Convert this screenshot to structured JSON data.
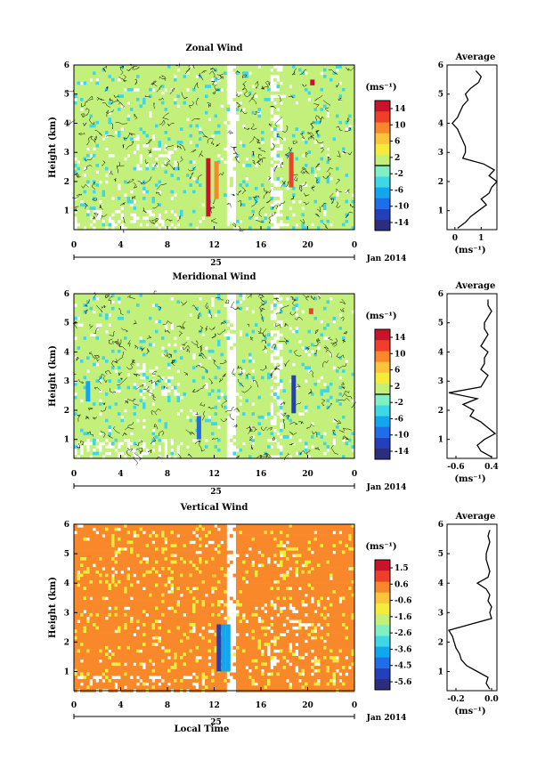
{
  "figure": {
    "month_label": "Jan 2014",
    "bottom_xlabel": "Local Time",
    "day_label": "25",
    "unit_label": "(ms⁻¹)"
  },
  "chart_data": [
    {
      "type": "heatmap",
      "title": "Zonal Wind",
      "ylabel": "Height (km)",
      "xlabel": "Local Time",
      "xticks": [
        "0",
        "4",
        "8",
        "12",
        "16",
        "20",
        "0"
      ],
      "xlim": [
        0,
        24
      ],
      "yticks": [
        "1",
        "2",
        "3",
        "4",
        "5",
        "6"
      ],
      "ylim": [
        0.35,
        6
      ],
      "grid": false,
      "colorbar": {
        "label": "(ms⁻¹)",
        "ticks": [
          "14",
          "10",
          "6",
          "2",
          "-2",
          "-6",
          "-10",
          "-14"
        ],
        "range": [
          -16,
          16
        ]
      },
      "background_value": 0.5,
      "features": [
        {
          "time": 11.5,
          "height_range": [
            0.8,
            2.8
          ],
          "value": 14
        },
        {
          "time": 12.2,
          "height_range": [
            1.4,
            2.7
          ],
          "value": 9
        },
        {
          "time": 18.6,
          "height_range": [
            1.8,
            3.0
          ],
          "value": 13
        },
        {
          "time": 20.4,
          "height_range": [
            5.3,
            5.5
          ],
          "value": 14
        }
      ],
      "profile": {
        "title": "Average",
        "xlabel": "(ms⁻¹)",
        "xticks": [
          "0",
          "1"
        ],
        "xlim": [
          -0.3,
          1.6
        ],
        "heights": [
          0.4,
          0.6,
          0.8,
          1.0,
          1.2,
          1.4,
          1.6,
          1.8,
          2.0,
          2.2,
          2.4,
          2.6,
          2.8,
          3.0,
          3.2,
          3.4,
          3.6,
          3.8,
          4.0,
          4.2,
          4.4,
          4.6,
          4.8,
          5.0,
          5.2,
          5.4,
          5.6,
          5.8
        ],
        "values": [
          0.1,
          0.4,
          0.6,
          0.9,
          1.2,
          1.0,
          1.3,
          1.4,
          1.6,
          1.3,
          1.5,
          1.1,
          0.3,
          0.4,
          0.4,
          0.3,
          0.2,
          0.1,
          -0.1,
          0.1,
          0.2,
          0.3,
          0.5,
          0.4,
          0.6,
          0.9,
          1.0,
          0.8
        ]
      }
    },
    {
      "type": "heatmap",
      "title": "Meridional Wind",
      "ylabel": "Height (km)",
      "xlabel": "Local Time",
      "xticks": [
        "0",
        "4",
        "8",
        "12",
        "16",
        "20",
        "0"
      ],
      "xlim": [
        0,
        24
      ],
      "yticks": [
        "1",
        "2",
        "3",
        "4",
        "5",
        "6"
      ],
      "ylim": [
        0.35,
        6
      ],
      "grid": false,
      "colorbar": {
        "label": "(ms⁻¹)",
        "ticks": [
          "14",
          "10",
          "6",
          "2",
          "-2",
          "-6",
          "-10",
          "-14"
        ],
        "range": [
          -16,
          16
        ]
      },
      "background_value": 0.5,
      "features": [
        {
          "time": 18.8,
          "height_range": [
            1.9,
            3.2
          ],
          "value": -11
        },
        {
          "time": 1.2,
          "height_range": [
            2.3,
            3.0
          ],
          "value": -8
        },
        {
          "time": 10.7,
          "height_range": [
            1.0,
            1.8
          ],
          "value": -10
        },
        {
          "time": 20.3,
          "height_range": [
            5.3,
            5.5
          ],
          "value": 13
        }
      ],
      "profile": {
        "title": "Average",
        "xlabel": "(ms⁻¹)",
        "xticks": [
          "-0.6",
          "0.4"
        ],
        "xlim": [
          -0.85,
          0.55
        ],
        "heights": [
          0.4,
          0.6,
          0.8,
          1.0,
          1.2,
          1.4,
          1.6,
          1.8,
          2.0,
          2.2,
          2.4,
          2.6,
          2.8,
          3.0,
          3.2,
          3.4,
          3.6,
          3.8,
          4.0,
          4.2,
          4.4,
          4.6,
          4.8,
          5.0,
          5.2,
          5.4,
          5.6,
          5.8
        ],
        "values": [
          0.4,
          0.1,
          0.0,
          0.2,
          0.5,
          0.3,
          0.1,
          -0.2,
          -0.1,
          -0.4,
          0.0,
          -0.8,
          0.1,
          0.2,
          0.3,
          0.1,
          0.2,
          0.2,
          0.3,
          0.1,
          0.2,
          0.3,
          0.2,
          0.2,
          0.3,
          0.4,
          0.3,
          0.3
        ]
      }
    },
    {
      "type": "heatmap",
      "title": "Vertical Wind",
      "ylabel": "Height (km)",
      "xlabel": "Local Time",
      "xticks": [
        "0",
        "4",
        "8",
        "12",
        "16",
        "20",
        "0"
      ],
      "xlim": [
        0,
        24
      ],
      "yticks": [
        "1",
        "2",
        "3",
        "4",
        "5",
        "6"
      ],
      "ylim": [
        0.35,
        6
      ],
      "grid": false,
      "colorbar": {
        "label": "(ms⁻¹)",
        "ticks": [
          "1.5",
          "0.6",
          "-0.6",
          "-1.6",
          "-2.6",
          "-3.6",
          "-4.5",
          "-5.6"
        ],
        "range": [
          -6,
          2
        ]
      },
      "background_value": 0.2,
      "features": [
        {
          "time": 12.4,
          "height_range": [
            1.0,
            2.6
          ],
          "value": -5.0
        },
        {
          "time": 12.8,
          "height_range": [
            1.0,
            2.6
          ],
          "value": -4.0
        },
        {
          "time": 13.2,
          "height_range": [
            1.0,
            2.6
          ],
          "value": -3.5
        },
        {
          "time": 12.0,
          "height_range": [
            4.2,
            4.3
          ],
          "value": -0.6
        }
      ],
      "profile": {
        "title": "Average",
        "xlabel": "(ms⁻¹)",
        "xticks": [
          "-0.2",
          "0.0"
        ],
        "xlim": [
          -0.25,
          0.03
        ],
        "heights": [
          0.4,
          0.6,
          0.8,
          1.0,
          1.2,
          1.4,
          1.6,
          1.8,
          2.0,
          2.2,
          2.4,
          2.6,
          2.8,
          3.0,
          3.2,
          3.4,
          3.6,
          3.8,
          4.0,
          4.2,
          4.4,
          4.6,
          4.8,
          5.0,
          5.2,
          5.4,
          5.6,
          5.8
        ],
        "values": [
          -0.01,
          -0.03,
          -0.02,
          -0.08,
          -0.14,
          -0.17,
          -0.18,
          -0.2,
          -0.21,
          -0.22,
          -0.24,
          -0.12,
          0.0,
          -0.01,
          0.0,
          -0.02,
          -0.01,
          -0.03,
          -0.08,
          -0.02,
          -0.01,
          -0.02,
          -0.03,
          -0.03,
          -0.02,
          -0.01,
          -0.02,
          -0.01
        ]
      }
    }
  ]
}
